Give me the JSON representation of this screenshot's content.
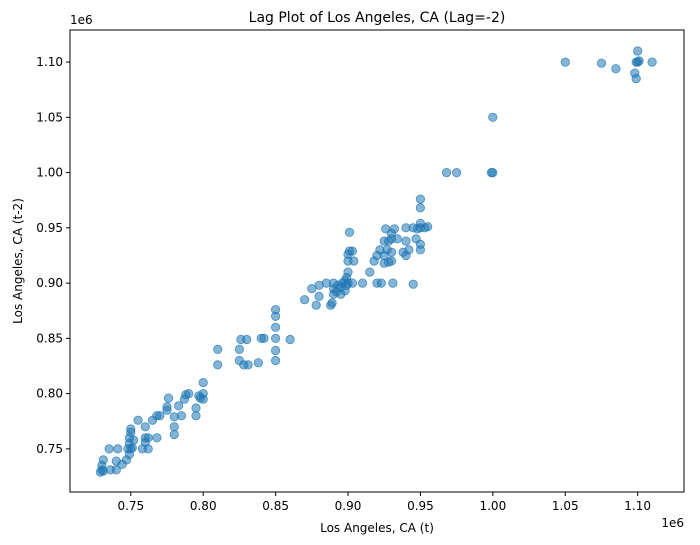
{
  "chart_data": {
    "type": "scatter",
    "title": "Lag Plot of Los Angeles, CA (Lag=-2)",
    "xlabel": "Los Angeles, CA (t)",
    "ylabel": "Los Angeles, CA (t-2)",
    "x_offset_label": "1e6",
    "y_offset_label": "1e6",
    "xlim": [
      0.708,
      1.132
    ],
    "ylim": [
      0.711,
      1.129
    ],
    "xticks": [
      0.75,
      0.8,
      0.85,
      0.9,
      0.95,
      1.0,
      1.05,
      1.1
    ],
    "xtick_labels": [
      "0.75",
      "0.80",
      "0.85",
      "0.90",
      "0.95",
      "1.00",
      "1.05",
      "1.10"
    ],
    "yticks": [
      0.75,
      0.8,
      0.85,
      0.9,
      0.95,
      1.0,
      1.05,
      1.1
    ],
    "ytick_labels": [
      "0.75",
      "0.80",
      "0.85",
      "0.90",
      "0.95",
      "1.00",
      "1.05",
      "1.10"
    ],
    "grid": false,
    "marker_color": "#1f77b4",
    "marker_alpha": 0.55,
    "points": [
      [
        0.729,
        0.729
      ],
      [
        0.73,
        0.731
      ],
      [
        0.731,
        0.73
      ],
      [
        0.73,
        0.735
      ],
      [
        0.731,
        0.74
      ],
      [
        0.735,
        0.75
      ],
      [
        0.736,
        0.731
      ],
      [
        0.74,
        0.731
      ],
      [
        0.74,
        0.739
      ],
      [
        0.741,
        0.75
      ],
      [
        0.744,
        0.736
      ],
      [
        0.747,
        0.74
      ],
      [
        0.748,
        0.75
      ],
      [
        0.749,
        0.745
      ],
      [
        0.749,
        0.755
      ],
      [
        0.749,
        0.76
      ],
      [
        0.75,
        0.765
      ],
      [
        0.75,
        0.768
      ],
      [
        0.75,
        0.75
      ],
      [
        0.751,
        0.751
      ],
      [
        0.752,
        0.758
      ],
      [
        0.755,
        0.776
      ],
      [
        0.758,
        0.75
      ],
      [
        0.76,
        0.756
      ],
      [
        0.76,
        0.76
      ],
      [
        0.76,
        0.77
      ],
      [
        0.762,
        0.75
      ],
      [
        0.762,
        0.76
      ],
      [
        0.765,
        0.776
      ],
      [
        0.768,
        0.76
      ],
      [
        0.768,
        0.78
      ],
      [
        0.77,
        0.78
      ],
      [
        0.775,
        0.785
      ],
      [
        0.775,
        0.788
      ],
      [
        0.776,
        0.796
      ],
      [
        0.78,
        0.763
      ],
      [
        0.78,
        0.77
      ],
      [
        0.78,
        0.779
      ],
      [
        0.783,
        0.789
      ],
      [
        0.785,
        0.78
      ],
      [
        0.787,
        0.795
      ],
      [
        0.788,
        0.799
      ],
      [
        0.79,
        0.8
      ],
      [
        0.795,
        0.78
      ],
      [
        0.795,
        0.787
      ],
      [
        0.797,
        0.798
      ],
      [
        0.798,
        0.796
      ],
      [
        0.8,
        0.8
      ],
      [
        0.8,
        0.81
      ],
      [
        0.8,
        0.795
      ],
      [
        0.81,
        0.826
      ],
      [
        0.81,
        0.84
      ],
      [
        0.825,
        0.84
      ],
      [
        0.825,
        0.83
      ],
      [
        0.826,
        0.849
      ],
      [
        0.828,
        0.826
      ],
      [
        0.83,
        0.849
      ],
      [
        0.831,
        0.826
      ],
      [
        0.838,
        0.828
      ],
      [
        0.84,
        0.85
      ],
      [
        0.842,
        0.85
      ],
      [
        0.85,
        0.83
      ],
      [
        0.85,
        0.839
      ],
      [
        0.85,
        0.85
      ],
      [
        0.85,
        0.86
      ],
      [
        0.85,
        0.87
      ],
      [
        0.85,
        0.876
      ],
      [
        0.86,
        0.849
      ],
      [
        0.87,
        0.885
      ],
      [
        0.875,
        0.895
      ],
      [
        0.878,
        0.88
      ],
      [
        0.88,
        0.888
      ],
      [
        0.88,
        0.898
      ],
      [
        0.885,
        0.9
      ],
      [
        0.888,
        0.88
      ],
      [
        0.889,
        0.882
      ],
      [
        0.89,
        0.89
      ],
      [
        0.89,
        0.895
      ],
      [
        0.89,
        0.9
      ],
      [
        0.892,
        0.892
      ],
      [
        0.893,
        0.898
      ],
      [
        0.895,
        0.89
      ],
      [
        0.895,
        0.896
      ],
      [
        0.896,
        0.9
      ],
      [
        0.898,
        0.893
      ],
      [
        0.898,
        0.902
      ],
      [
        0.899,
        0.898
      ],
      [
        0.899,
        0.905
      ],
      [
        0.9,
        0.91
      ],
      [
        0.9,
        0.92
      ],
      [
        0.9,
        0.926
      ],
      [
        0.9,
        0.9
      ],
      [
        0.901,
        0.946
      ],
      [
        0.901,
        0.929
      ],
      [
        0.903,
        0.929
      ],
      [
        0.903,
        0.9
      ],
      [
        0.904,
        0.92
      ],
      [
        0.91,
        0.9
      ],
      [
        0.915,
        0.91
      ],
      [
        0.918,
        0.92
      ],
      [
        0.92,
        0.925
      ],
      [
        0.92,
        0.9
      ],
      [
        0.922,
        0.93
      ],
      [
        0.923,
        0.9
      ],
      [
        0.925,
        0.918
      ],
      [
        0.925,
        0.925
      ],
      [
        0.925,
        0.938
      ],
      [
        0.926,
        0.949
      ],
      [
        0.927,
        0.93
      ],
      [
        0.928,
        0.919
      ],
      [
        0.928,
        0.938
      ],
      [
        0.93,
        0.94
      ],
      [
        0.93,
        0.945
      ],
      [
        0.93,
        0.928
      ],
      [
        0.93,
        0.92
      ],
      [
        0.931,
        0.9
      ],
      [
        0.932,
        0.949
      ],
      [
        0.934,
        0.94
      ],
      [
        0.938,
        0.928
      ],
      [
        0.94,
        0.925
      ],
      [
        0.94,
        0.938
      ],
      [
        0.94,
        0.95
      ],
      [
        0.942,
        0.93
      ],
      [
        0.945,
        0.899
      ],
      [
        0.945,
        0.95
      ],
      [
        0.947,
        0.94
      ],
      [
        0.948,
        0.949
      ],
      [
        0.95,
        0.93
      ],
      [
        0.95,
        0.935
      ],
      [
        0.95,
        0.95
      ],
      [
        0.95,
        0.954
      ],
      [
        0.95,
        0.968
      ],
      [
        0.95,
        0.976
      ],
      [
        0.953,
        0.95
      ],
      [
        0.955,
        0.951
      ],
      [
        0.968,
        1.0
      ],
      [
        0.975,
        1.0
      ],
      [
        0.999,
        1.0
      ],
      [
        1.0,
        1.0
      ],
      [
        1.0,
        1.05
      ],
      [
        1.05,
        1.1
      ],
      [
        1.075,
        1.099
      ],
      [
        1.085,
        1.094
      ],
      [
        1.098,
        1.09
      ],
      [
        1.099,
        1.085
      ],
      [
        1.099,
        1.1
      ],
      [
        1.1,
        1.11
      ],
      [
        1.1,
        1.1
      ],
      [
        1.101,
        1.101
      ],
      [
        1.11,
        1.1
      ]
    ]
  }
}
